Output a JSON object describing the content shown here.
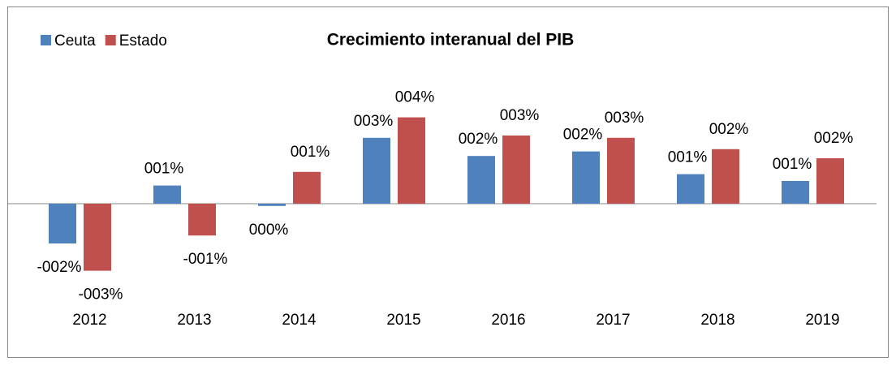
{
  "chart_data": {
    "type": "bar",
    "title": "Crecimiento interanual del PIB",
    "categories": [
      "2012",
      "2013",
      "2014",
      "2015",
      "2016",
      "2017",
      "2018",
      "2019"
    ],
    "series": [
      {
        "name": "Ceuta",
        "color": "#4f81bd",
        "values": [
          -1.75,
          0.8,
          -0.1,
          2.9,
          2.1,
          2.3,
          1.3,
          1.0
        ],
        "value_labels": [
          "-002%",
          "001%",
          "000%",
          "003%",
          "002%",
          "002%",
          "001%",
          "001%"
        ]
      },
      {
        "name": "Estado",
        "color": "#c0504d",
        "values": [
          -2.95,
          -1.4,
          1.4,
          3.8,
          3.0,
          2.9,
          2.4,
          2.0
        ],
        "value_labels": [
          "-003%",
          "-001%",
          "001%",
          "004%",
          "003%",
          "003%",
          "002%",
          "002%"
        ]
      }
    ],
    "ylim": [
      -4,
      5
    ],
    "legend": "top-left"
  }
}
